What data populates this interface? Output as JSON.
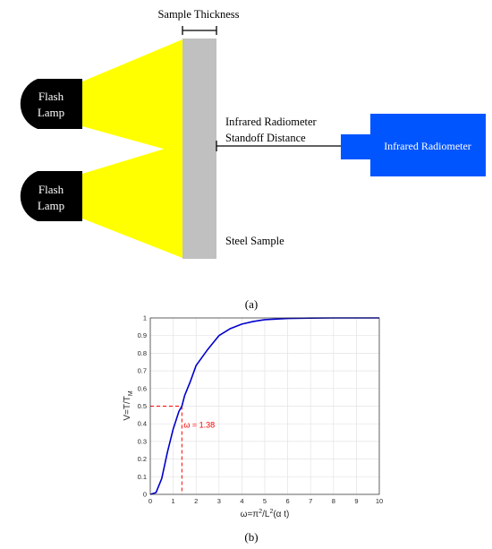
{
  "diagram": {
    "sample_thickness_label": "Sample Thickness",
    "flash_lamp_line1": "Flash",
    "flash_lamp_line2": "Lamp",
    "radiometer_distance_line1": "Infrared Radiometer",
    "radiometer_distance_line2": "Standoff Distance",
    "radiometer_label": "Infrared Radiometer",
    "steel_sample_label": "Steel Sample",
    "caption": "(a)",
    "colors": {
      "lamp": "#000000",
      "light": "#ffff00",
      "sample": "#c0c0c0",
      "radiometer": "#0055ff"
    }
  },
  "chart_data": {
    "type": "line",
    "xlabel": "ω=π²/L²(α t)",
    "ylabel": "V=T/T_M",
    "xlim": [
      0,
      10
    ],
    "ylim": [
      0,
      1
    ],
    "xticks": [
      "0",
      "1",
      "2",
      "3",
      "4",
      "5",
      "6",
      "7",
      "8",
      "9",
      "10"
    ],
    "yticks": [
      "0",
      "0.1",
      "0.2",
      "0.3",
      "0.4",
      "0.5",
      "0.6",
      "0.7",
      "0.8",
      "0.9",
      "1"
    ],
    "grid": true,
    "series": [
      {
        "color": "#0000cc",
        "x": [
          0,
          0.25,
          0.5,
          0.75,
          1.0,
          1.25,
          1.38,
          1.5,
          1.75,
          2.0,
          2.5,
          3.0,
          3.5,
          4.0,
          4.5,
          5.0,
          6.0,
          7.0,
          8.0,
          9.0,
          10.0
        ],
        "y": [
          0,
          0.01,
          0.09,
          0.24,
          0.37,
          0.47,
          0.5,
          0.56,
          0.64,
          0.73,
          0.82,
          0.9,
          0.94,
          0.965,
          0.98,
          0.99,
          0.997,
          0.999,
          1.0,
          1.0,
          1.0
        ]
      }
    ],
    "annotation": {
      "x": 1.38,
      "y": 0.5,
      "label": "ω = 1.38",
      "color": "#ff0000"
    },
    "caption": "(b)"
  }
}
